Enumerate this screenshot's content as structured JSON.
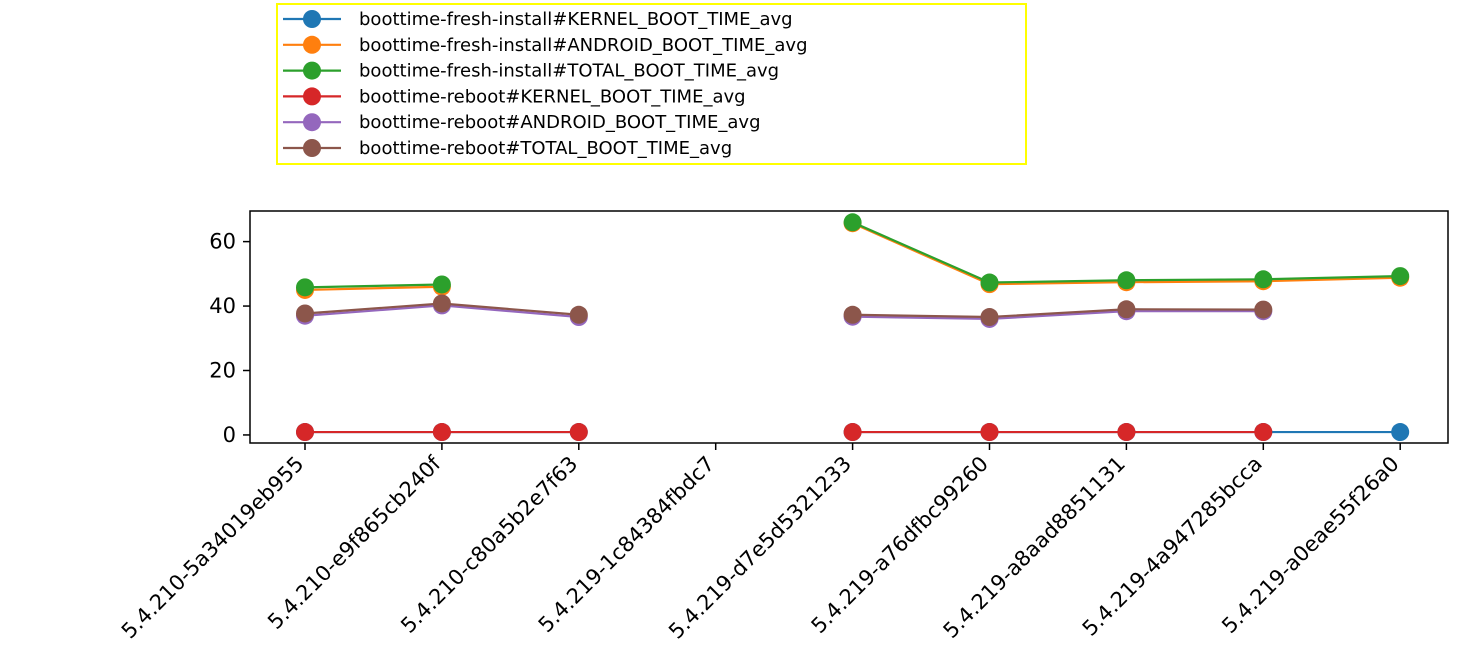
{
  "chart_data": {
    "type": "line",
    "title": "",
    "xlabel": "",
    "ylabel": "",
    "categories": [
      "5.4.210-5a34019eb955",
      "5.4.210-e9f865cb240f",
      "5.4.210-c80a5b2e7f63",
      "5.4.219-1c84384fbdc7",
      "5.4.219-d7e5d5321233",
      "5.4.219-a76dfbc99260",
      "5.4.219-a8aad8851131",
      "5.4.219-4a947285bcca",
      "5.4.219-a0eae55f26a0"
    ],
    "ylim": [
      -2.5,
      69.5
    ],
    "yticks": [
      0,
      20,
      40,
      60
    ],
    "grid": false,
    "legend_placement": "above plot, top-left",
    "legend_frame_color": "#ffff00",
    "series": [
      {
        "name": "boottime-fresh-install#KERNEL_BOOT_TIME_avg",
        "color": "#1f77b4",
        "values": [
          0.9,
          0.9,
          0.9,
          null,
          0.9,
          0.9,
          0.9,
          0.9,
          0.9
        ]
      },
      {
        "name": "boottime-fresh-install#ANDROID_BOOT_TIME_avg",
        "color": "#ff7f0e",
        "values": [
          45.0,
          46.0,
          null,
          null,
          65.7,
          46.8,
          47.4,
          47.7,
          48.8
        ]
      },
      {
        "name": "boottime-fresh-install#TOTAL_BOOT_TIME_avg",
        "color": "#2ca02c",
        "values": [
          45.8,
          46.7,
          null,
          null,
          66.0,
          47.3,
          48.0,
          48.3,
          49.3
        ]
      },
      {
        "name": "boottime-reboot#KERNEL_BOOT_TIME_avg",
        "color": "#d62728",
        "values": [
          0.9,
          0.9,
          0.9,
          null,
          0.9,
          0.9,
          0.9,
          0.9,
          null
        ]
      },
      {
        "name": "boottime-reboot#ANDROID_BOOT_TIME_avg",
        "color": "#9467bd",
        "values": [
          37.0,
          40.2,
          36.6,
          null,
          36.7,
          36.0,
          38.4,
          38.4,
          null
        ]
      },
      {
        "name": "boottime-reboot#TOTAL_BOOT_TIME_avg",
        "color": "#8c564b",
        "values": [
          37.7,
          40.8,
          37.3,
          null,
          37.3,
          36.6,
          39.0,
          38.9,
          null
        ]
      }
    ]
  }
}
